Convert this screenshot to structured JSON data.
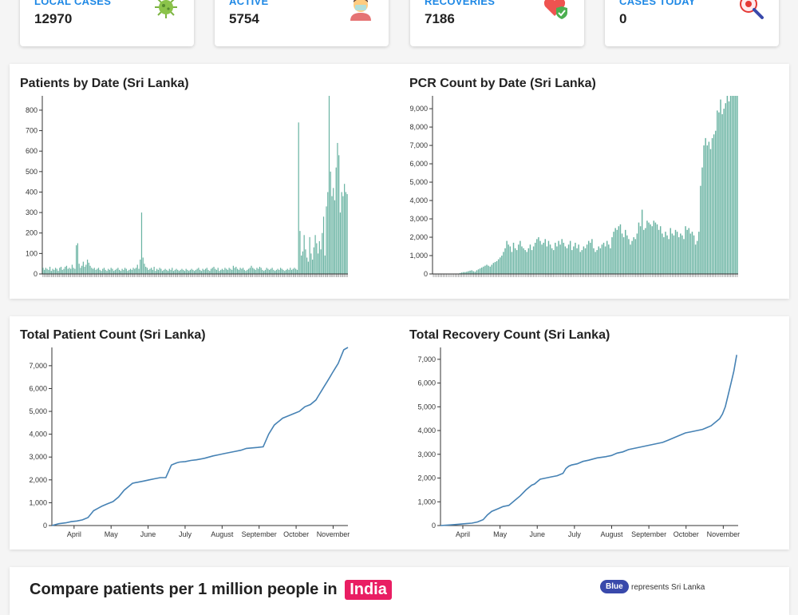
{
  "stats": [
    {
      "label": "LOCAL CASES",
      "value": "12970",
      "icon": "virus-icon"
    },
    {
      "label": "ACTIVE",
      "value": "5754",
      "icon": "masked-person-icon"
    },
    {
      "label": "RECOVERIES",
      "value": "7186",
      "icon": "heart-shield-icon"
    },
    {
      "label": "CASES TODAY",
      "value": "0",
      "icon": "magnifier-virus-icon"
    }
  ],
  "compare": {
    "title": "Compare patients per 1 million people in",
    "country": "India",
    "legend_pill": "Blue",
    "legend_text": "represents Sri Lanka"
  },
  "chart_data": [
    {
      "type": "bar",
      "title": "Patients by Date (Sri Lanka)",
      "ylim": [
        0,
        870
      ],
      "yticks": [
        "0",
        "100",
        "200",
        "300",
        "400",
        "500",
        "600",
        "700",
        "800"
      ],
      "color": "#69b3a2",
      "values": [
        30,
        20,
        30,
        25,
        20,
        35,
        15,
        25,
        20,
        30,
        25,
        15,
        30,
        35,
        20,
        25,
        35,
        40,
        25,
        30,
        25,
        45,
        30,
        25,
        140,
        150,
        50,
        30,
        40,
        60,
        35,
        45,
        70,
        55,
        40,
        30,
        25,
        30,
        20,
        25,
        30,
        20,
        15,
        25,
        30,
        20,
        15,
        25,
        20,
        30,
        25,
        15,
        20,
        25,
        30,
        20,
        15,
        25,
        20,
        30,
        25,
        15,
        20,
        25,
        20,
        30,
        25,
        30,
        45,
        25,
        70,
        300,
        80,
        50,
        35,
        30,
        20,
        25,
        30,
        20,
        35,
        15,
        25,
        20,
        30,
        25,
        15,
        20,
        25,
        20,
        15,
        25,
        20,
        30,
        15,
        20,
        25,
        20,
        15,
        20,
        25,
        20,
        15,
        25,
        20,
        15,
        20,
        25,
        20,
        15,
        20,
        25,
        30,
        20,
        15,
        25,
        20,
        25,
        30,
        20,
        15,
        25,
        30,
        35,
        25,
        20,
        30,
        15,
        20,
        25,
        20,
        30,
        25,
        20,
        30,
        25,
        20,
        40,
        30,
        35,
        25,
        20,
        30,
        25,
        30,
        20,
        15,
        20,
        25,
        30,
        40,
        30,
        25,
        20,
        30,
        25,
        35,
        30,
        20,
        15,
        20,
        30,
        25,
        20,
        25,
        30,
        20,
        15,
        20,
        25,
        20,
        30,
        25,
        20,
        15,
        20,
        25,
        20,
        30,
        20,
        25,
        30,
        25,
        20,
        740,
        210,
        90,
        110,
        190,
        120,
        80,
        60,
        180,
        100,
        70,
        130,
        190,
        150,
        100,
        160,
        120,
        200,
        280,
        90,
        330,
        400,
        870,
        500,
        380,
        420,
        360,
        520,
        640,
        580,
        300,
        400,
        380,
        440,
        400,
        390
      ]
    },
    {
      "type": "bar",
      "title": "PCR Count by Date (Sri Lanka)",
      "ylim": [
        0,
        9700
      ],
      "yticks": [
        "0",
        "1,000",
        "2,000",
        "3,000",
        "4,000",
        "5,000",
        "6,000",
        "7,000",
        "8,000",
        "9,000"
      ],
      "color": "#69b3a2",
      "values": [
        10,
        10,
        10,
        10,
        10,
        10,
        10,
        10,
        10,
        10,
        10,
        10,
        10,
        10,
        10,
        20,
        50,
        80,
        100,
        100,
        120,
        150,
        180,
        200,
        150,
        120,
        200,
        250,
        300,
        350,
        400,
        450,
        500,
        450,
        400,
        500,
        600,
        650,
        700,
        800,
        900,
        1000,
        1200,
        1400,
        1800,
        1600,
        1500,
        1200,
        1700,
        1400,
        1300,
        1600,
        1800,
        1500,
        1400,
        1300,
        1200,
        1400,
        1600,
        1300,
        1500,
        1700,
        1900,
        2000,
        1800,
        1600,
        1700,
        1900,
        1500,
        1800,
        1600,
        1400,
        1300,
        1700,
        1500,
        1800,
        1600,
        1900,
        1700,
        1500,
        1400,
        1600,
        1800,
        1300,
        1500,
        1700,
        1400,
        1600,
        1200,
        1300,
        1500,
        1400,
        1600,
        1800,
        1700,
        1900,
        1400,
        1200,
        1300,
        1500,
        1400,
        1600,
        1700,
        1500,
        1800,
        1600,
        1400,
        2000,
        2300,
        2500,
        2400,
        2600,
        2700,
        2200,
        2000,
        2400,
        2100,
        1900,
        1600,
        1800,
        2000,
        1900,
        2200,
        2800,
        2600,
        3500,
        2400,
        2500,
        2900,
        2800,
        2700,
        2600,
        2900,
        2800,
        2700,
        2400,
        2600,
        2200,
        2000,
        2300,
        2100,
        1900,
        2500,
        2200,
        2100,
        2400,
        2300,
        2000,
        2200,
        2100,
        1900,
        2600,
        2400,
        2500,
        2200,
        2300,
        2100,
        1600,
        1800,
        2300,
        4800,
        5800,
        7000,
        7400,
        7000,
        7200,
        6800,
        7400,
        7600,
        7800,
        8900,
        8800,
        9500,
        8700,
        9000,
        9300,
        9700,
        9400,
        9700,
        9700,
        9700,
        9700,
        9700
      ]
    },
    {
      "type": "line",
      "title": "Total Patient Count (Sri Lanka)",
      "ylim": [
        0,
        7800
      ],
      "yticks": [
        "0",
        "1,000",
        "2,000",
        "3,000",
        "4,000",
        "5,000",
        "6,000",
        "7,000"
      ],
      "xticks": [
        "April",
        "May",
        "June",
        "July",
        "August",
        "September",
        "October",
        "November"
      ],
      "color": "#4682b4",
      "x": [
        0,
        5,
        10,
        14,
        18,
        22,
        26,
        30,
        33,
        36,
        40,
        44,
        48,
        52,
        56,
        58,
        60,
        62,
        66,
        70,
        74,
        78,
        82,
        86,
        88,
        90,
        92,
        96,
        100,
        104,
        110,
        116,
        120,
        124,
        128,
        132,
        136,
        140,
        144,
        148,
        152,
        156,
        160,
        162,
        164,
        166,
        170,
        174,
        178,
        182,
        186,
        190,
        192,
        194,
        196,
        198,
        200,
        202,
        204,
        206,
        208,
        210,
        213
      ],
      "values": [
        0,
        80,
        120,
        170,
        200,
        250,
        350,
        650,
        750,
        850,
        950,
        1050,
        1250,
        1550,
        1750,
        1850,
        1880,
        1900,
        1950,
        2000,
        2050,
        2100,
        2100,
        2650,
        2700,
        2750,
        2780,
        2800,
        2850,
        2880,
        2950,
        3050,
        3100,
        3150,
        3200,
        3250,
        3300,
        3380,
        3400,
        3420,
        3450,
        4000,
        4400,
        4500,
        4600,
        4700,
        4800,
        4900,
        5000,
        5200,
        5300,
        5500,
        5700,
        5900,
        6100,
        6300,
        6500,
        6700,
        6900,
        7100,
        7400,
        7700,
        7800
      ]
    },
    {
      "type": "line",
      "title": "Total Recovery Count (Sri Lanka)",
      "ylim": [
        0,
        7500
      ],
      "yticks": [
        "0",
        "1,000",
        "2,000",
        "3,000",
        "4,000",
        "5,000",
        "6,000",
        "7,000"
      ],
      "xticks": [
        "April",
        "May",
        "June",
        "July",
        "August",
        "September",
        "October",
        "November"
      ],
      "color": "#4682b4",
      "x": [
        0,
        5,
        10,
        14,
        18,
        22,
        26,
        30,
        33,
        36,
        40,
        44,
        48,
        52,
        56,
        60,
        64,
        66,
        70,
        74,
        78,
        82,
        86,
        88,
        90,
        92,
        96,
        100,
        104,
        110,
        116,
        120,
        124,
        128,
        132,
        136,
        140,
        144,
        148,
        152,
        156,
        160,
        164,
        168,
        172,
        176,
        180,
        184,
        186,
        188,
        190,
        192,
        194,
        196,
        198,
        200,
        202,
        204,
        206,
        208
      ],
      "values": [
        0,
        20,
        40,
        60,
        80,
        100,
        150,
        250,
        450,
        600,
        700,
        800,
        850,
        1050,
        1250,
        1500,
        1700,
        1750,
        1950,
        2000,
        2050,
        2100,
        2200,
        2400,
        2500,
        2550,
        2600,
        2700,
        2750,
        2850,
        2900,
        2950,
        3050,
        3100,
        3200,
        3250,
        3300,
        3350,
        3400,
        3450,
        3500,
        3600,
        3700,
        3800,
        3900,
        3950,
        4000,
        4050,
        4100,
        4150,
        4200,
        4300,
        4400,
        4500,
        4700,
        5000,
        5500,
        6000,
        6500,
        7186
      ]
    }
  ]
}
